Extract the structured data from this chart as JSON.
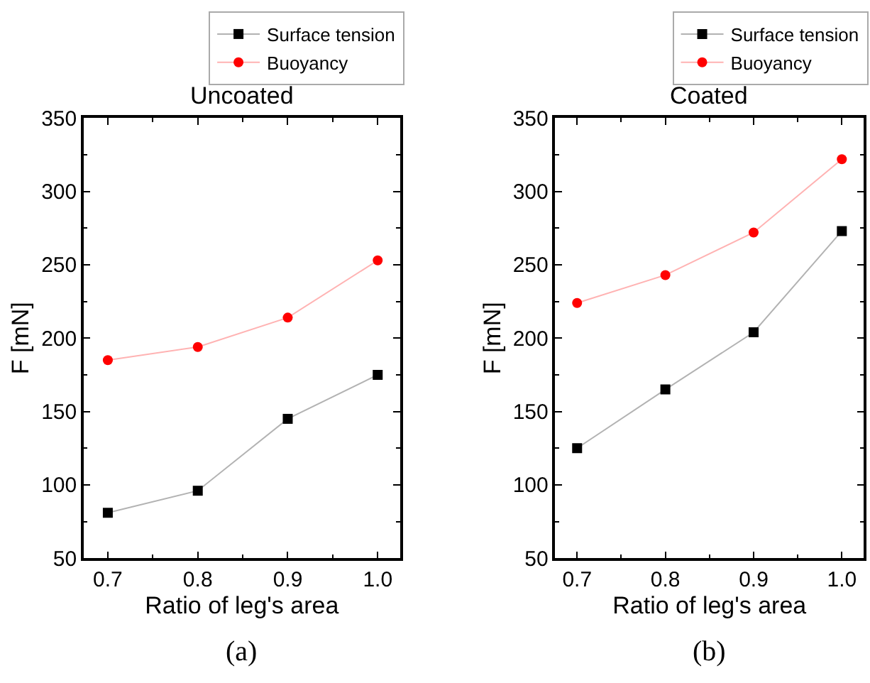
{
  "chart_data": [
    {
      "type": "line",
      "title": "Uncoated",
      "xlabel": "Ratio of leg's area",
      "ylabel": "F [mN]",
      "x": [
        0.7,
        0.8,
        0.9,
        1.0
      ],
      "series": [
        {
          "name": "Surface tension",
          "color": "#000000",
          "marker": "square",
          "values": [
            81,
            96,
            145,
            175
          ]
        },
        {
          "name": "Buoyancy",
          "color": "#ff0000",
          "marker": "circle",
          "values": [
            185,
            194,
            214,
            253
          ]
        }
      ],
      "xlim": [
        0.673,
        1.025
      ],
      "xticks": [
        0.7,
        0.8,
        0.9,
        {
          "value": 1.0,
          "label": "1.0"
        }
      ],
      "ylim": [
        50,
        350
      ],
      "yticks": [
        50,
        100,
        150,
        200,
        250,
        300,
        350
      ],
      "grid": false,
      "legend": "top right",
      "annotations": [
        "(a)"
      ]
    },
    {
      "type": "line",
      "title": "Coated",
      "xlabel": "Ratio of leg's area",
      "ylabel": "F [mN]",
      "x": [
        0.7,
        0.8,
        0.9,
        1.0
      ],
      "series": [
        {
          "name": "Surface tension",
          "color": "#000000",
          "marker": "square",
          "values": [
            125,
            165,
            204,
            273
          ]
        },
        {
          "name": "Buoyancy",
          "color": "#ff0000",
          "marker": "circle",
          "values": [
            224,
            243,
            272,
            322
          ]
        }
      ],
      "xlim": [
        0.675,
        1.025
      ],
      "xticks": [
        0.7,
        0.8,
        0.9,
        {
          "value": 1.0,
          "label": "1.0"
        }
      ],
      "ylim": [
        50,
        350
      ],
      "yticks": [
        50,
        100,
        150,
        200,
        250,
        300,
        350
      ],
      "grid": false,
      "legend": "top right",
      "annotations": [
        "(b)"
      ]
    }
  ]
}
